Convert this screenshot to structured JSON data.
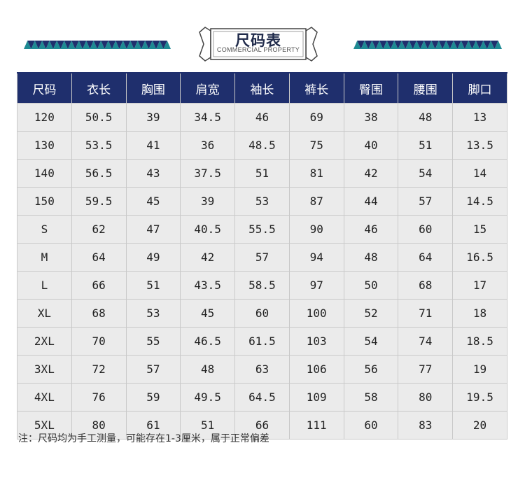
{
  "header": {
    "title": "尺码表",
    "subtitle": "COMMERCIAL PROPERTY"
  },
  "colors": {
    "header_bg": "#1f2f6d",
    "cell_bg": "#ebebeb",
    "zigzag_teal": "#1e8a93",
    "zigzag_navy": "#1f2f6d"
  },
  "table": {
    "columns": [
      "尺码",
      "衣长",
      "胸围",
      "肩宽",
      "袖长",
      "裤长",
      "臀围",
      "腰围",
      "脚口"
    ],
    "rows": [
      [
        "120",
        "50.5",
        "39",
        "34.5",
        "46",
        "69",
        "38",
        "48",
        "13"
      ],
      [
        "130",
        "53.5",
        "41",
        "36",
        "48.5",
        "75",
        "40",
        "51",
        "13.5"
      ],
      [
        "140",
        "56.5",
        "43",
        "37.5",
        "51",
        "81",
        "42",
        "54",
        "14"
      ],
      [
        "150",
        "59.5",
        "45",
        "39",
        "53",
        "87",
        "44",
        "57",
        "14.5"
      ],
      [
        "S",
        "62",
        "47",
        "40.5",
        "55.5",
        "90",
        "46",
        "60",
        "15"
      ],
      [
        "M",
        "64",
        "49",
        "42",
        "57",
        "94",
        "48",
        "64",
        "16.5"
      ],
      [
        "L",
        "66",
        "51",
        "43.5",
        "58.5",
        "97",
        "50",
        "68",
        "17"
      ],
      [
        "XL",
        "68",
        "53",
        "45",
        "60",
        "100",
        "52",
        "71",
        "18"
      ],
      [
        "2XL",
        "70",
        "55",
        "46.5",
        "61.5",
        "103",
        "54",
        "74",
        "18.5"
      ],
      [
        "3XL",
        "72",
        "57",
        "48",
        "63",
        "106",
        "56",
        "77",
        "19"
      ],
      [
        "4XL",
        "76",
        "59",
        "49.5",
        "64.5",
        "109",
        "58",
        "80",
        "19.5"
      ],
      [
        "5XL",
        "80",
        "61",
        "51",
        "66",
        "111",
        "60",
        "83",
        "20"
      ]
    ]
  },
  "note": "注：尺码均为手工测量，可能存在1-3厘米，属于正常偏差"
}
